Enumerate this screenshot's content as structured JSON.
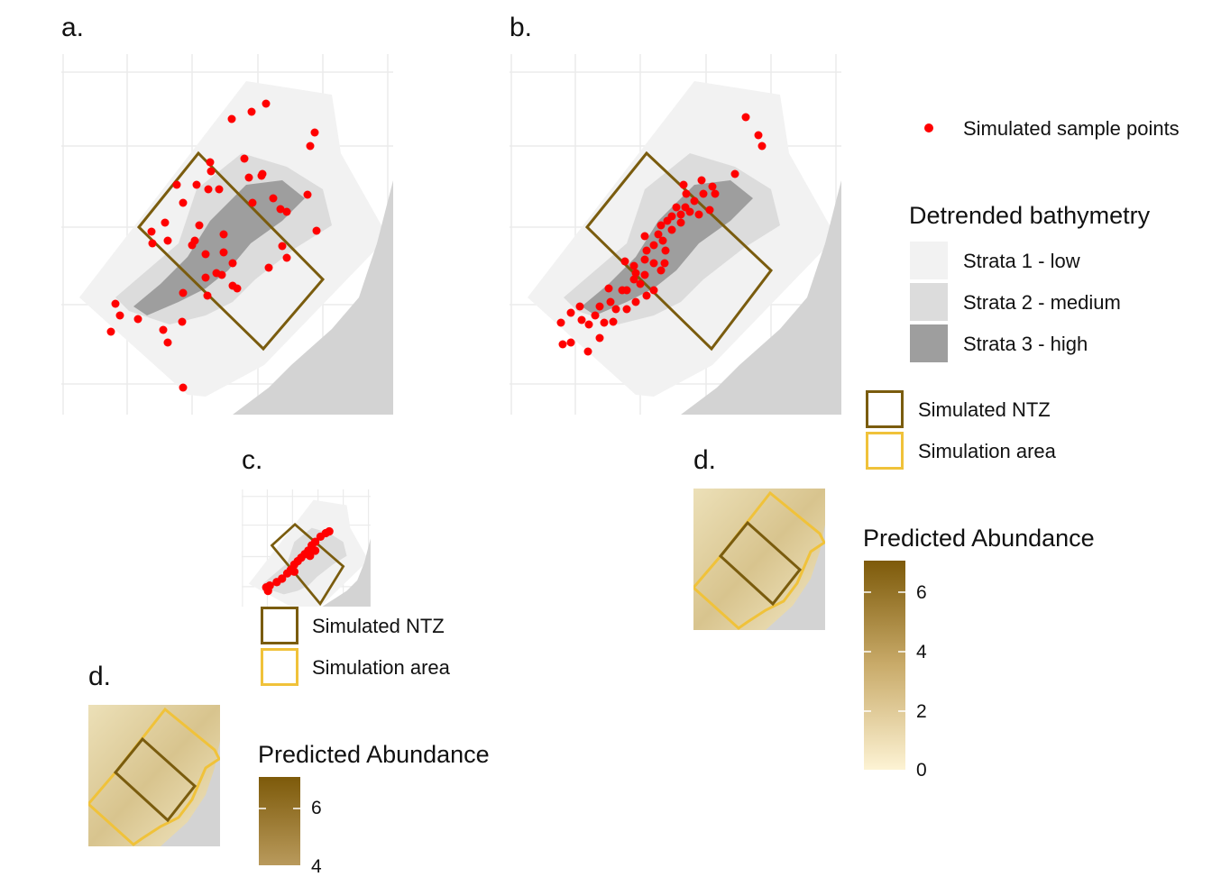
{
  "panels": {
    "a": {
      "label": "a."
    },
    "b": {
      "label": "b."
    },
    "c": {
      "label": "c."
    },
    "d1": {
      "label": "d."
    },
    "d2": {
      "label": "d."
    }
  },
  "legend": {
    "points": {
      "label": "Simulated sample points",
      "color": "#ff0000"
    },
    "bathymetry": {
      "title": "Detrended bathymetry",
      "strata": [
        {
          "label": "Strata 1 - low",
          "color": "#f2f2f2"
        },
        {
          "label": "Strata 2 - medium",
          "color": "#dcdcdc"
        },
        {
          "label": "Strata 3 - high",
          "color": "#9e9e9e"
        }
      ]
    },
    "boxes": [
      {
        "label": "Simulated NTZ",
        "color": "#7a5c0e"
      },
      {
        "label": "Simulation area",
        "color": "#f0c23a"
      }
    ],
    "boxes_c": [
      {
        "label": "Simulated NTZ",
        "color": "#7a5c0e"
      },
      {
        "label": "Simulation area",
        "color": "#f0c23a"
      }
    ],
    "abundance": {
      "title": "Predicted Abundance",
      "ticks": [
        "6",
        "4",
        "2",
        "0"
      ],
      "color_low": "#fdf3d4",
      "color_high": "#7d5a0a"
    },
    "abundance2": {
      "title": "Predicted Abundance",
      "ticks": [
        "6",
        "4"
      ]
    }
  },
  "colors": {
    "land": "#d3d3d3",
    "grid": "#ebebeb",
    "ntz": "#7a5c0e",
    "sim_area": "#f0c23a"
  }
}
